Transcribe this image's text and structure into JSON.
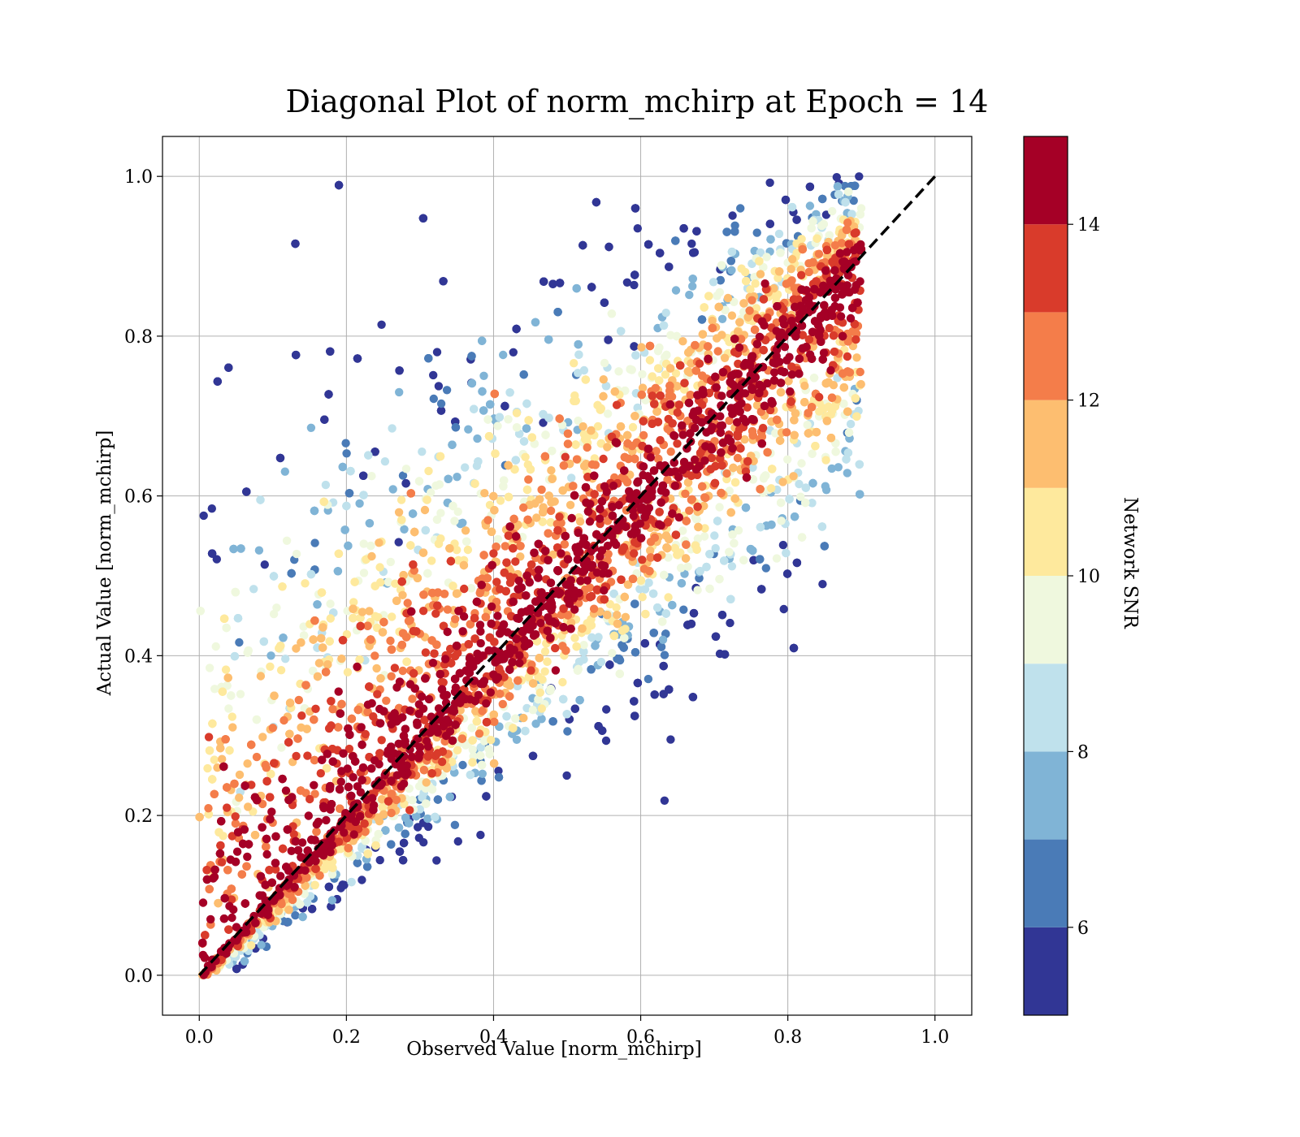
{
  "chart_data": {
    "type": "scatter",
    "title": "Diagonal Plot of norm_mchirp at Epoch = 14",
    "xlabel": "Observed Value [norm_mchirp]",
    "ylabel": "Actual Value [norm_mchirp]",
    "xlim": [
      -0.05,
      1.05
    ],
    "ylim": [
      -0.05,
      1.05
    ],
    "xticks": [
      0.0,
      0.2,
      0.4,
      0.6,
      0.8,
      1.0
    ],
    "yticks": [
      0.0,
      0.2,
      0.4,
      0.6,
      0.8,
      1.0
    ],
    "xtick_labels": [
      "0.0",
      "0.2",
      "0.4",
      "0.6",
      "0.8",
      "1.0"
    ],
    "ytick_labels": [
      "0.0",
      "0.2",
      "0.4",
      "0.6",
      "0.8",
      "1.0"
    ],
    "grid": true,
    "reference_line": {
      "from": [
        0,
        0
      ],
      "to": [
        1,
        1
      ],
      "style": "dashed",
      "color": "#000000"
    },
    "colorbar": {
      "label": "Network SNR",
      "range": [
        5,
        15
      ],
      "ticks": [
        6,
        8,
        10,
        12,
        14
      ],
      "tick_labels": [
        "6",
        "8",
        "10",
        "12",
        "14"
      ],
      "bins": [
        {
          "from": 5,
          "to": 6,
          "color": "#313695"
        },
        {
          "from": 6,
          "to": 7,
          "color": "#4a7bb7"
        },
        {
          "from": 7,
          "to": 8,
          "color": "#80b4d6"
        },
        {
          "from": 8,
          "to": 9,
          "color": "#bfe1ec"
        },
        {
          "from": 9,
          "to": 10,
          "color": "#eff8de"
        },
        {
          "from": 10,
          "to": 11,
          "color": "#fee99d"
        },
        {
          "from": 11,
          "to": 12,
          "color": "#fdbe70"
        },
        {
          "from": 12,
          "to": 13,
          "color": "#f47d4a"
        },
        {
          "from": 13,
          "to": 14,
          "color": "#d93b2b"
        },
        {
          "from": 14,
          "to": 15,
          "color": "#a50026"
        }
      ]
    },
    "points_summary": {
      "x_range": [
        0.0,
        0.92
      ],
      "y_range": [
        0.0,
        1.0
      ],
      "high_snr_band": "points near y = x, SNR >= 14",
      "low_snr_region": "points far above diagonal at low observed values, SNR 5-9"
    }
  }
}
